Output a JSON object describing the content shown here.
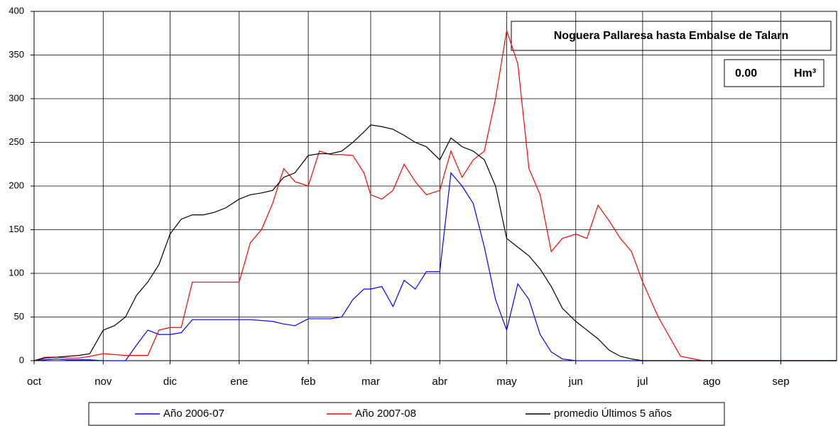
{
  "chart_data": {
    "type": "line",
    "title": "Noguera Pallaresa hasta Embalse de Talarn",
    "annotations": [
      "0.00",
      "Hm³"
    ],
    "x": [
      0,
      5,
      10,
      15,
      20,
      25,
      31,
      36,
      41,
      46,
      51,
      56,
      61,
      66,
      71,
      76,
      81,
      86,
      92,
      97,
      102,
      107,
      112,
      117,
      123,
      128,
      133,
      138,
      143,
      148,
      151,
      156,
      161,
      166,
      171,
      176,
      182,
      187,
      192,
      197,
      202,
      207,
      212,
      217,
      222,
      227,
      232,
      237,
      243,
      248,
      253,
      258,
      263,
      268,
      273,
      280,
      290,
      300,
      310,
      320,
      330,
      340,
      350,
      360
    ],
    "xlim": [
      0,
      360
    ],
    "xticks": [
      {
        "value": 0,
        "label": "oct"
      },
      {
        "value": 31,
        "label": "nov"
      },
      {
        "value": 61,
        "label": "dic"
      },
      {
        "value": 92,
        "label": "ene"
      },
      {
        "value": 123,
        "label": "feb"
      },
      {
        "value": 151,
        "label": "mar"
      },
      {
        "value": 182,
        "label": "abr"
      },
      {
        "value": 212,
        "label": "may"
      },
      {
        "value": 243,
        "label": "jun"
      },
      {
        "value": 273,
        "label": "jul"
      },
      {
        "value": 304,
        "label": "ago"
      },
      {
        "value": 335,
        "label": "sep"
      }
    ],
    "ylim": [
      0,
      400
    ],
    "yticks": [
      0,
      50,
      100,
      150,
      200,
      250,
      300,
      350,
      400
    ],
    "grid": true,
    "series": [
      {
        "name": "Año 2006-07",
        "color": "#0000ff",
        "values": [
          0,
          1,
          2,
          1,
          1,
          1,
          0,
          0,
          0,
          18,
          35,
          30,
          30,
          32,
          47,
          47,
          47,
          47,
          47,
          47,
          46,
          45,
          42,
          40,
          48,
          48,
          48,
          50,
          70,
          82,
          82,
          85,
          62,
          92,
          82,
          102,
          102,
          215,
          200,
          180,
          130,
          70,
          35,
          88,
          70,
          30,
          10,
          2,
          0,
          0,
          0,
          0,
          0,
          0,
          0,
          0,
          0,
          0,
          0,
          0,
          0,
          0,
          0,
          0
        ]
      },
      {
        "name": "Año 2007-08",
        "color": "#ff0000",
        "values": [
          0,
          4,
          4,
          3,
          3,
          5,
          8,
          7,
          6,
          6,
          6,
          35,
          38,
          38,
          90,
          90,
          90,
          90,
          90,
          135,
          150,
          180,
          220,
          205,
          200,
          240,
          236,
          236,
          235,
          215,
          190,
          185,
          195,
          225,
          205,
          190,
          195,
          240,
          210,
          230,
          240,
          300,
          378,
          340,
          220,
          190,
          125,
          140,
          145,
          140,
          178,
          160,
          140,
          125,
          90,
          50,
          5,
          0,
          0,
          0,
          0,
          0,
          0,
          0
        ]
      },
      {
        "name": "promedio Últimos 5 años",
        "color": "#000000",
        "values": [
          0,
          3,
          4,
          5,
          6,
          8,
          35,
          40,
          50,
          75,
          90,
          110,
          145,
          162,
          167,
          167,
          170,
          175,
          185,
          190,
          192,
          195,
          210,
          215,
          235,
          237,
          237,
          240,
          250,
          262,
          270,
          268,
          265,
          258,
          250,
          245,
          230,
          255,
          245,
          240,
          230,
          200,
          140,
          130,
          120,
          105,
          85,
          60,
          45,
          35,
          25,
          12,
          5,
          2,
          0,
          0,
          0,
          0,
          0,
          0,
          0,
          0,
          0,
          0
        ]
      }
    ]
  }
}
